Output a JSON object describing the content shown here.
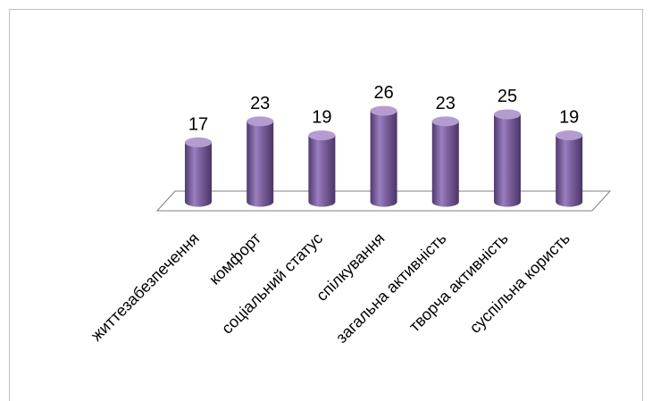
{
  "chart_data": {
    "type": "bar",
    "style": "3d-cylinder",
    "title": "",
    "xlabel": "",
    "ylabel": "",
    "categories": [
      "життезабезпечення",
      "комфорт",
      "соціальний статус",
      "спілкування",
      "загальна активність",
      "творча активність",
      "суспільна користь"
    ],
    "values": [
      17,
      23,
      19,
      26,
      23,
      25,
      19
    ],
    "data_labels": [
      "17",
      "23",
      "19",
      "26",
      "23",
      "25",
      "19"
    ],
    "ylim": [
      0,
      26
    ],
    "grid": false,
    "legend": "none",
    "colors": {
      "bar_fill": "#8064A2",
      "bar_light": "#B39DD0",
      "bar_dark": "#4F3A6E",
      "floor_stroke": "#7F7F7F",
      "frame_stroke": "#BFBFBF",
      "text": "#000000"
    }
  }
}
